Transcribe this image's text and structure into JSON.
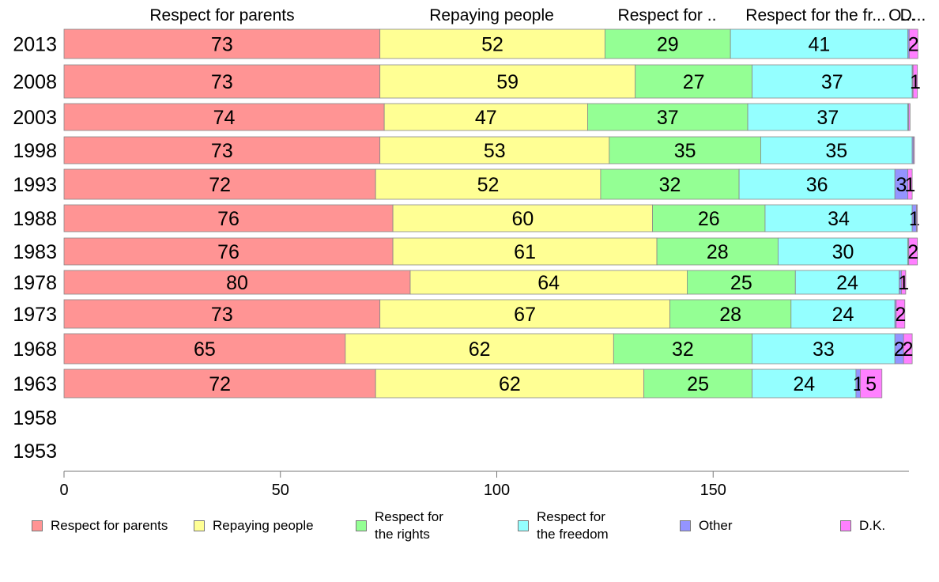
{
  "chart_data": {
    "type": "bar",
    "orientation": "horizontal",
    "stacked": true,
    "categories": [
      "2013",
      "2008",
      "2003",
      "1998",
      "1993",
      "1988",
      "1983",
      "1978",
      "1973",
      "1968",
      "1963",
      "1958",
      "1953"
    ],
    "series": [
      {
        "name": "Respect for parents",
        "color": "#ff9494",
        "values": [
          73,
          73,
          74,
          73,
          72,
          76,
          76,
          80,
          73,
          65,
          72,
          null,
          null
        ]
      },
      {
        "name": "Repaying people",
        "color": "#ffff94",
        "values": [
          52,
          59,
          47,
          53,
          52,
          60,
          61,
          64,
          67,
          62,
          62,
          null,
          null
        ]
      },
      {
        "name": "Respect for the rights",
        "color": "#94ff94",
        "values": [
          29,
          27,
          37,
          35,
          32,
          26,
          28,
          25,
          28,
          32,
          25,
          null,
          null
        ]
      },
      {
        "name": "Respect for the freedom",
        "color": "#94ffff",
        "values": [
          41,
          37,
          37,
          35,
          36,
          34,
          30,
          24,
          24,
          33,
          24,
          null,
          null
        ]
      },
      {
        "name": "Other",
        "color": "#9494ff",
        "values": [
          0.3,
          0.2,
          0.2,
          0.3,
          3,
          1,
          0.2,
          0.5,
          0.3,
          2,
          1,
          null,
          null
        ]
      },
      {
        "name": "D.K.",
        "color": "#ff80ff",
        "values": [
          2,
          1,
          0.3,
          0.2,
          1,
          0.2,
          2,
          1,
          2,
          2,
          5,
          null,
          null
        ]
      }
    ],
    "top_labels": [
      "Respect for parents",
      "Repaying people",
      "Respect for ..",
      "Respect for the fr...",
      "O...",
      "D..."
    ],
    "x_ticks": [
      0,
      50,
      100,
      150
    ],
    "xlim": [
      0,
      200
    ],
    "grid": false,
    "legend_position": "bottom",
    "legend_labels": [
      "Respect for parents",
      "Repaying people",
      "Respect for\nthe rights",
      "Respect for\nthe freedom",
      "Other",
      "D.K."
    ],
    "xlabel": "",
    "ylabel": ""
  }
}
